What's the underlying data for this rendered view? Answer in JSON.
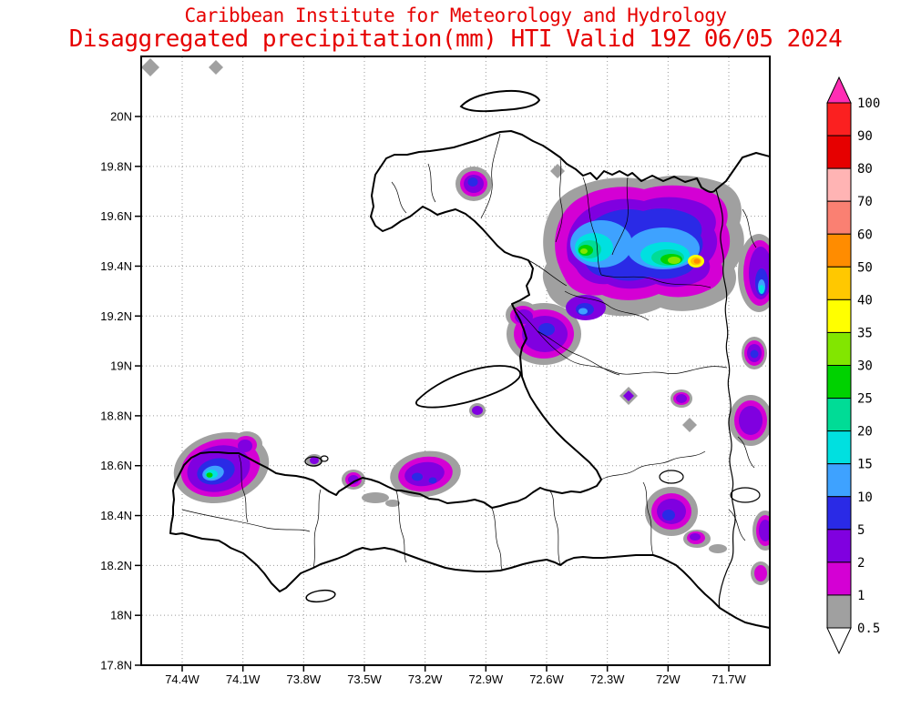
{
  "header": {
    "title_line1": "Caribbean Institute for Meteorology and Hydrology",
    "title_line2": "Disaggregated precipitation(mm) HTI Valid 19Z 06/05 2024",
    "title_color": "#e60000"
  },
  "axes": {
    "lat_ticks": [
      "20N",
      "19.8N",
      "19.6N",
      "19.4N",
      "19.2N",
      "19N",
      "18.8N",
      "18.6N",
      "18.4N",
      "18.2N",
      "18N",
      "17.8N"
    ],
    "lon_ticks": [
      "74.4W",
      "74.1W",
      "73.8W",
      "73.5W",
      "73.2W",
      "72.9W",
      "72.6W",
      "72.3W",
      "72W",
      "71.7W"
    ]
  },
  "colorbar": {
    "tick_labels": [
      "100",
      "90",
      "80",
      "70",
      "60",
      "50",
      "40",
      "35",
      "30",
      "25",
      "20",
      "15",
      "10",
      "5",
      "2",
      "1",
      "0.5"
    ],
    "segment_colors_top_to_bottom": [
      "#fb2020",
      "#e60000",
      "#ffb4b4",
      "#fa8072",
      "#ff8c00",
      "#ffc800",
      "#ffff00",
      "#82e600",
      "#00d200",
      "#00dc96",
      "#00e0e0",
      "#3ea2ff",
      "#2a2ae6",
      "#8000e0",
      "#d400d4",
      "#a0a0a0"
    ],
    "above_max_color": "#ff2db4",
    "below_min_color": "#ffffff"
  },
  "palette": {
    "0.5": "#a0a0a0",
    "1": "#d400d4",
    "2": "#8000e0",
    "5": "#2a2ae6",
    "10": "#3ea2ff",
    "15": "#00e0e0",
    "20": "#00dc96",
    "25": "#00d200",
    "30": "#82e600",
    "35": "#ffff00",
    "40": "#ffc800",
    "50": "#ff8c00",
    "60": "#fa8072",
    "70": "#ffb4b4",
    "80": "#e60000",
    "90": "#fb2020",
    "100": "#ff2db4"
  },
  "chart_data": {
    "type": "heatmap",
    "title": "Disaggregated precipitation(mm) HTI Valid 19Z 06/05 2024",
    "subtitle": "Caribbean Institute for Meteorology and Hydrology",
    "units": "mm",
    "region": "HTI",
    "valid_time": "19Z 06/05 2024",
    "x_ticks": [
      "74.4W",
      "74.1W",
      "73.8W",
      "73.5W",
      "73.2W",
      "72.9W",
      "72.6W",
      "72.3W",
      "72W",
      "71.7W"
    ],
    "y_ticks": [
      "20N",
      "19.8N",
      "19.6N",
      "19.4N",
      "19.2N",
      "19N",
      "18.8N",
      "18.6N",
      "18.4N",
      "18.2N",
      "18N",
      "17.8N"
    ],
    "scale_levels_mm": [
      0.5,
      1,
      2,
      5,
      10,
      15,
      20,
      25,
      30,
      35,
      40,
      50,
      60,
      70,
      80,
      90,
      100
    ],
    "legend_position": "right",
    "grid": "dotted",
    "notes": "Filled precipitation contours over Haiti; max cell ~50-60mm near 19.4N 71.9W; widespread 1-35mm over the north/northeast, isolated 1-30mm cells in the southwest peninsula and along the eastern border"
  }
}
